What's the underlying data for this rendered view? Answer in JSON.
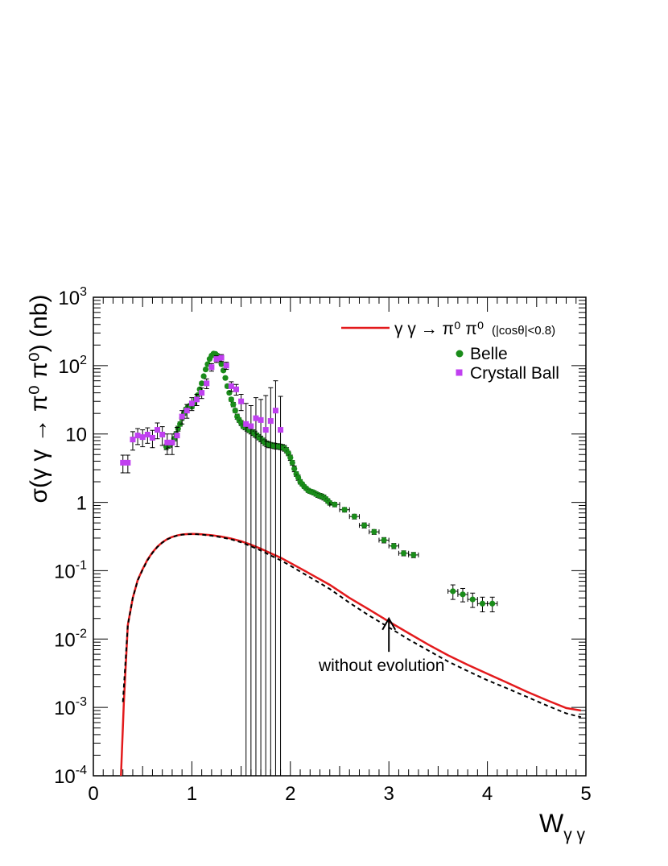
{
  "chart_data": {
    "type": "scatter",
    "title": "",
    "xlabel": "W",
    "xlabel_sub": "γ γ",
    "ylabel": "σ(γ γ → π⁰ π⁰) (nb)",
    "xlim": [
      0,
      5
    ],
    "ylim": [
      0.0001,
      1000
    ],
    "yscale": "log",
    "grid": false,
    "legend_position": "top-right",
    "x_ticks": [
      "0",
      "1",
      "2",
      "3",
      "4",
      "5"
    ],
    "y_ticks": [
      {
        "value": 0.0001,
        "label": "10",
        "exp": "-4"
      },
      {
        "value": 0.001,
        "label": "10",
        "exp": "-3"
      },
      {
        "value": 0.01,
        "label": "10",
        "exp": "-2"
      },
      {
        "value": 0.1,
        "label": "10",
        "exp": "-1"
      },
      {
        "value": 1,
        "label": "1",
        "exp": ""
      },
      {
        "value": 10,
        "label": "10",
        "exp": ""
      },
      {
        "value": 100,
        "label": "10",
        "exp": "2"
      },
      {
        "value": 1000,
        "label": "10",
        "exp": "3"
      }
    ],
    "series": [
      {
        "name": "γ γ → π⁰ π⁰",
        "legend_note": "(|cosθ|<0.8)",
        "kind": "line",
        "color": "#e31a1c",
        "x": [
          0.28,
          0.31,
          0.35,
          0.4,
          0.45,
          0.5,
          0.55,
          0.6,
          0.65,
          0.7,
          0.75,
          0.8,
          0.85,
          0.9,
          0.95,
          1.0,
          1.05,
          1.1,
          1.2,
          1.3,
          1.4,
          1.5,
          1.6,
          1.7,
          1.8,
          1.9,
          2.0,
          2.2,
          2.4,
          2.6,
          2.8,
          3.0,
          3.2,
          3.4,
          3.6,
          3.8,
          4.0,
          4.2,
          4.4,
          4.6,
          4.8,
          4.95
        ],
        "y": [
          0.0001,
          0.0012,
          0.016,
          0.04,
          0.073,
          0.105,
          0.145,
          0.185,
          0.225,
          0.26,
          0.29,
          0.312,
          0.328,
          0.338,
          0.343,
          0.345,
          0.344,
          0.34,
          0.33,
          0.315,
          0.295,
          0.27,
          0.24,
          0.21,
          0.18,
          0.155,
          0.13,
          0.09,
          0.062,
          0.04,
          0.027,
          0.018,
          0.0122,
          0.0083,
          0.0058,
          0.0042,
          0.0031,
          0.0023,
          0.0017,
          0.00128,
          0.00098,
          0.0009
        ]
      },
      {
        "name": "without evolution",
        "kind": "line",
        "dashed": true,
        "color": "#000000",
        "x": [
          0.3,
          0.35,
          0.4,
          0.45,
          0.5,
          0.55,
          0.6,
          0.65,
          0.7,
          0.75,
          0.8,
          0.85,
          0.9,
          0.95,
          1.0,
          1.05,
          1.1,
          1.2,
          1.3,
          1.4,
          1.5,
          1.6,
          1.7,
          1.8,
          1.9,
          2.0,
          2.2,
          2.4,
          2.6,
          2.8,
          3.0,
          3.2,
          3.4,
          3.6,
          3.8,
          4.0,
          4.2,
          4.4,
          4.6,
          4.8,
          4.95
        ],
        "y": [
          0.0012,
          0.016,
          0.04,
          0.072,
          0.103,
          0.142,
          0.182,
          0.222,
          0.257,
          0.287,
          0.31,
          0.326,
          0.336,
          0.341,
          0.343,
          0.342,
          0.337,
          0.325,
          0.308,
          0.287,
          0.26,
          0.228,
          0.197,
          0.167,
          0.142,
          0.118,
          0.08,
          0.054,
          0.034,
          0.022,
          0.0148,
          0.0099,
          0.0068,
          0.0047,
          0.0034,
          0.0025,
          0.0019,
          0.00143,
          0.00107,
          0.00082,
          0.00072
        ]
      },
      {
        "name": "Belle",
        "kind": "points",
        "marker": "circle",
        "color": "#1a8c1a",
        "x": [
          0.74,
          0.76,
          0.78,
          0.8,
          0.82,
          0.84,
          0.86,
          0.88,
          0.9,
          0.92,
          0.94,
          0.96,
          0.98,
          1.0,
          1.02,
          1.04,
          1.06,
          1.08,
          1.1,
          1.12,
          1.14,
          1.16,
          1.18,
          1.2,
          1.22,
          1.24,
          1.26,
          1.28,
          1.3,
          1.32,
          1.34,
          1.36,
          1.38,
          1.4,
          1.42,
          1.44,
          1.46,
          1.48,
          1.5,
          1.52,
          1.54,
          1.56,
          1.58,
          1.6,
          1.62,
          1.64,
          1.66,
          1.68,
          1.7,
          1.72,
          1.74,
          1.76,
          1.78,
          1.8,
          1.82,
          1.84,
          1.86,
          1.88,
          1.9,
          1.92,
          1.94,
          1.96,
          1.98,
          2.0,
          2.02,
          2.04,
          2.06,
          2.08,
          2.1,
          2.12,
          2.14,
          2.16,
          2.18,
          2.2,
          2.22,
          2.24,
          2.26,
          2.28,
          2.3,
          2.32,
          2.34,
          2.36,
          2.38,
          2.4,
          2.45,
          2.55,
          2.65,
          2.75,
          2.85,
          2.95,
          3.05,
          3.15,
          3.25,
          3.65,
          3.75,
          3.85,
          3.95,
          4.05
        ],
        "y": [
          6.5,
          6.8,
          7.0,
          7.5,
          8.5,
          10,
          12,
          14,
          17,
          20,
          23,
          25,
          26,
          25,
          28,
          32,
          37,
          45,
          55,
          70,
          88,
          105,
          125,
          140,
          150,
          148,
          140,
          125,
          105,
          85,
          66,
          50,
          40,
          32,
          27,
          22,
          18,
          16,
          14.5,
          13,
          12.5,
          12,
          11.5,
          11,
          10.5,
          10,
          9.5,
          9,
          8.5,
          8.0,
          7.5,
          7.2,
          7.0,
          6.9,
          6.8,
          6.7,
          6.6,
          6.6,
          6.5,
          6.4,
          6.2,
          5.8,
          5.2,
          4.5,
          3.8,
          3.1,
          2.6,
          2.3,
          2.0,
          1.85,
          1.7,
          1.6,
          1.5,
          1.45,
          1.42,
          1.38,
          1.33,
          1.28,
          1.25,
          1.22,
          1.18,
          1.12,
          1.05,
          0.98,
          0.93,
          0.78,
          0.62,
          0.46,
          0.37,
          0.28,
          0.23,
          0.18,
          0.17,
          0.05,
          0.045,
          0.038,
          0.033,
          0.033
        ],
        "err": [
          0.6,
          0.6,
          0.6,
          0.6,
          0.6,
          0.8,
          1,
          1,
          1.2,
          1.5,
          1.5,
          1.5,
          1.5,
          1.5,
          1.5,
          2,
          2,
          2,
          3,
          3,
          4,
          4,
          5,
          5,
          6,
          6,
          6,
          5,
          5,
          4,
          3,
          3,
          2,
          2,
          2,
          1.5,
          1.5,
          1.2,
          1.2,
          1,
          1,
          1,
          1,
          1,
          1,
          1,
          0.8,
          0.8,
          0.8,
          0.7,
          0.7,
          0.7,
          0.7,
          0.6,
          0.6,
          0.6,
          0.6,
          0.6,
          0.6,
          0.6,
          0.6,
          0.5,
          0.4,
          0.4,
          0.3,
          0.3,
          0.2,
          0.2,
          0.15,
          0.12,
          0.1,
          0.1,
          0.1,
          0.1,
          0.1,
          0.1,
          0.1,
          0.1,
          0.1,
          0.1,
          0.1,
          0.08,
          0.08,
          0.07,
          0.07,
          0.06,
          0.05,
          0.04,
          0.03,
          0.025,
          0.02,
          0.015,
          0.015,
          0.012,
          0.01,
          0.009,
          0.008,
          0.008
        ],
        "xerr": [
          0,
          0,
          0,
          0,
          0,
          0,
          0,
          0,
          0,
          0,
          0,
          0,
          0,
          0,
          0,
          0,
          0,
          0,
          0,
          0,
          0,
          0,
          0,
          0,
          0,
          0,
          0,
          0,
          0,
          0,
          0,
          0,
          0,
          0,
          0,
          0,
          0,
          0,
          0,
          0,
          0,
          0,
          0,
          0,
          0,
          0,
          0,
          0,
          0,
          0,
          0,
          0,
          0,
          0,
          0,
          0,
          0,
          0,
          0,
          0,
          0,
          0,
          0,
          0,
          0,
          0,
          0,
          0,
          0,
          0,
          0,
          0,
          0,
          0,
          0,
          0,
          0,
          0,
          0,
          0,
          0,
          0,
          0,
          0,
          0.05,
          0.05,
          0.05,
          0.05,
          0.05,
          0.05,
          0.05,
          0.05,
          0.05,
          0.05,
          0.05,
          0.05,
          0.05,
          0.05
        ]
      },
      {
        "name": "Crystall Ball",
        "kind": "points",
        "marker": "square",
        "color": "#c040f0",
        "x": [
          0.3,
          0.35,
          0.4,
          0.45,
          0.5,
          0.55,
          0.6,
          0.65,
          0.7,
          0.75,
          0.8,
          0.85,
          0.9,
          0.95,
          1.0,
          1.05,
          1.1,
          1.15,
          1.2,
          1.25,
          1.3,
          1.35,
          1.4,
          1.45,
          1.5,
          1.55,
          1.6,
          1.65,
          1.7,
          1.75,
          1.8,
          1.85,
          1.9
        ],
        "y": [
          3.8,
          3.8,
          8.3,
          9.5,
          9.0,
          9.8,
          8.8,
          11.5,
          9.8,
          7.5,
          7.5,
          9.5,
          18,
          22,
          28,
          32,
          40,
          55,
          95,
          125,
          130,
          100,
          50,
          45,
          30,
          14,
          13,
          17,
          16,
          11.5,
          15.5,
          22,
          11.5
        ],
        "err": [
          1.1,
          1.1,
          2.5,
          2.5,
          2.5,
          2.5,
          2.5,
          3,
          3,
          2.5,
          2.5,
          3,
          4,
          5,
          6,
          6,
          7,
          9,
          12,
          14,
          15,
          12,
          8,
          8,
          8,
          14,
          13,
          17,
          16,
          25,
          32,
          38,
          24
        ]
      }
    ],
    "annotations": [
      {
        "text": "without evolution",
        "x": 3.0,
        "y": 0.0034,
        "arrow_from_y": 0.0065,
        "arrow_to_y": 0.02
      }
    ]
  }
}
